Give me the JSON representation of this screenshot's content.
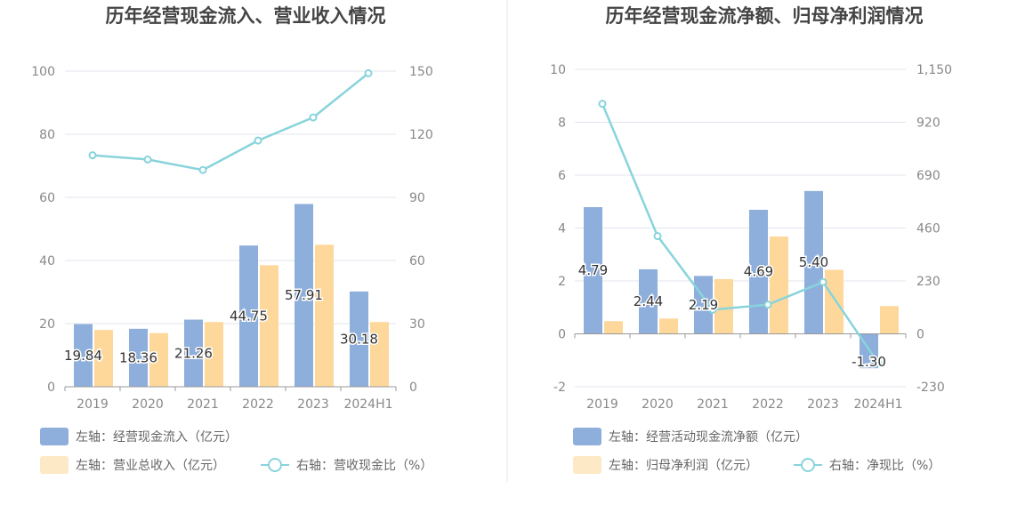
{
  "colors": {
    "bar1": "#8eaedb",
    "bar2": "#fdd89a",
    "bar2_legend": "#fde9c5",
    "line": "#88d4dc",
    "grid": "#e0e4ee",
    "axis": "#999999"
  },
  "chart_data": [
    {
      "type": "bar+line",
      "title": "历年经营现金流入、营业收入情况",
      "categories": [
        "2019",
        "2020",
        "2021",
        "2022",
        "2023",
        "2024H1"
      ],
      "left_axis": {
        "min": 0,
        "max": 100,
        "ticks": [
          0,
          20,
          40,
          60,
          80,
          100
        ],
        "tick_labels": [
          "0",
          "20",
          "40",
          "60",
          "80",
          "100"
        ]
      },
      "right_axis": {
        "min": 0,
        "max": 150,
        "ticks": [
          0,
          30,
          60,
          90,
          120,
          150
        ],
        "tick_labels": [
          "0",
          "30",
          "60",
          "90",
          "120",
          "150"
        ]
      },
      "bar_series": [
        {
          "name": "左轴：经营现金流入（亿元）",
          "values": [
            19.84,
            18.36,
            21.26,
            44.75,
            57.91,
            30.18
          ],
          "labels": [
            "19.84",
            "18.36",
            "21.26",
            "44.75",
            "57.91",
            "30.18"
          ]
        },
        {
          "name": "左轴：营业总收入（亿元）",
          "values": [
            18,
            17,
            20.5,
            38.5,
            45,
            20.5
          ]
        }
      ],
      "line_series": {
        "name": "右轴：营收现金比（%）",
        "values": [
          110,
          108,
          103,
          117,
          128,
          149
        ]
      }
    },
    {
      "type": "bar+line",
      "title": "历年经营现金流净额、归母净利润情况",
      "categories": [
        "2019",
        "2020",
        "2021",
        "2022",
        "2023",
        "2024H1"
      ],
      "left_axis": {
        "min": -2,
        "max": 10,
        "ticks": [
          -2,
          0,
          2,
          4,
          6,
          8,
          10
        ],
        "tick_labels": [
          "-2",
          "0",
          "2",
          "4",
          "6",
          "8",
          "10"
        ]
      },
      "right_axis": {
        "min": -230,
        "max": 1150,
        "ticks": [
          -230,
          0,
          230,
          460,
          690,
          920,
          1150
        ],
        "tick_labels": [
          "-230",
          "0",
          "230",
          "460",
          "690",
          "920",
          "1,150"
        ]
      },
      "bar_series": [
        {
          "name": "左轴：经营活动现金流净额（亿元）",
          "values": [
            4.79,
            2.44,
            2.19,
            4.69,
            5.4,
            -1.3
          ],
          "labels": [
            "4.79",
            "2.44",
            "2.19",
            "4.69",
            "5.40",
            "-1.30"
          ]
        },
        {
          "name": "左轴：归母净利润（亿元）",
          "values": [
            0.48,
            0.58,
            2.07,
            3.68,
            2.42,
            1.05
          ]
        }
      ],
      "line_series": {
        "name": "右轴：净现比（%）",
        "values": [
          1000,
          425,
          105,
          127,
          225,
          -127
        ]
      }
    }
  ]
}
